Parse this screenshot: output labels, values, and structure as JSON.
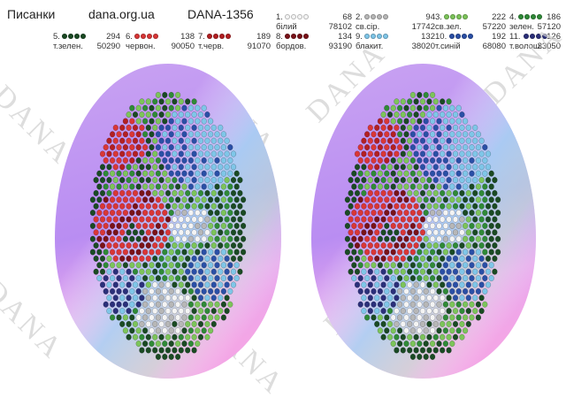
{
  "header": {
    "title": "Писанки",
    "site": "dana.org.ua",
    "code": "DANA-1356"
  },
  "threads": [
    {
      "no": "1.",
      "count": "68",
      "name": "білий",
      "code": "78102",
      "color": "#f4f4f4"
    },
    {
      "no": "2.",
      "count": "94",
      "name": "св.сір.",
      "code": "17742",
      "color": "#b7b7b7"
    },
    {
      "no": "3.",
      "count": "222",
      "name": "св.зел.",
      "code": "57220",
      "color": "#7cc45a"
    },
    {
      "no": "4.",
      "count": "186",
      "name": "зелен.",
      "code": "57120",
      "color": "#2f8a37"
    },
    {
      "no": "5.",
      "count": "294",
      "name": "т.зелен.",
      "code": "50290",
      "color": "#1a4a23"
    },
    {
      "no": "6.",
      "count": "138",
      "name": "червон.",
      "code": "90050",
      "color": "#d93636"
    },
    {
      "no": "7.",
      "count": "189",
      "name": "т.черв.",
      "code": "91070",
      "color": "#b31f22"
    },
    {
      "no": "8.",
      "count": "134",
      "name": "бордов.",
      "code": "93190",
      "color": "#7a1218"
    },
    {
      "no": "9.",
      "count": "132",
      "name": "блакит.",
      "code": "38020",
      "color": "#7fc6e8"
    },
    {
      "no": "10.",
      "count": "192",
      "name": "т.синій",
      "code": "68080",
      "color": "#2a4fa6"
    },
    {
      "no": "11.",
      "count": "126",
      "name": "т.волош.",
      "code": "33050",
      "color": "#2b2f7a"
    }
  ],
  "watermark": "DANA",
  "colors": {
    "egg_purple": "#b98df2",
    "egg_pink": "#f3a6e6",
    "egg_blue": "#a5d8f3",
    "egg_green": "#bdf0cf"
  }
}
